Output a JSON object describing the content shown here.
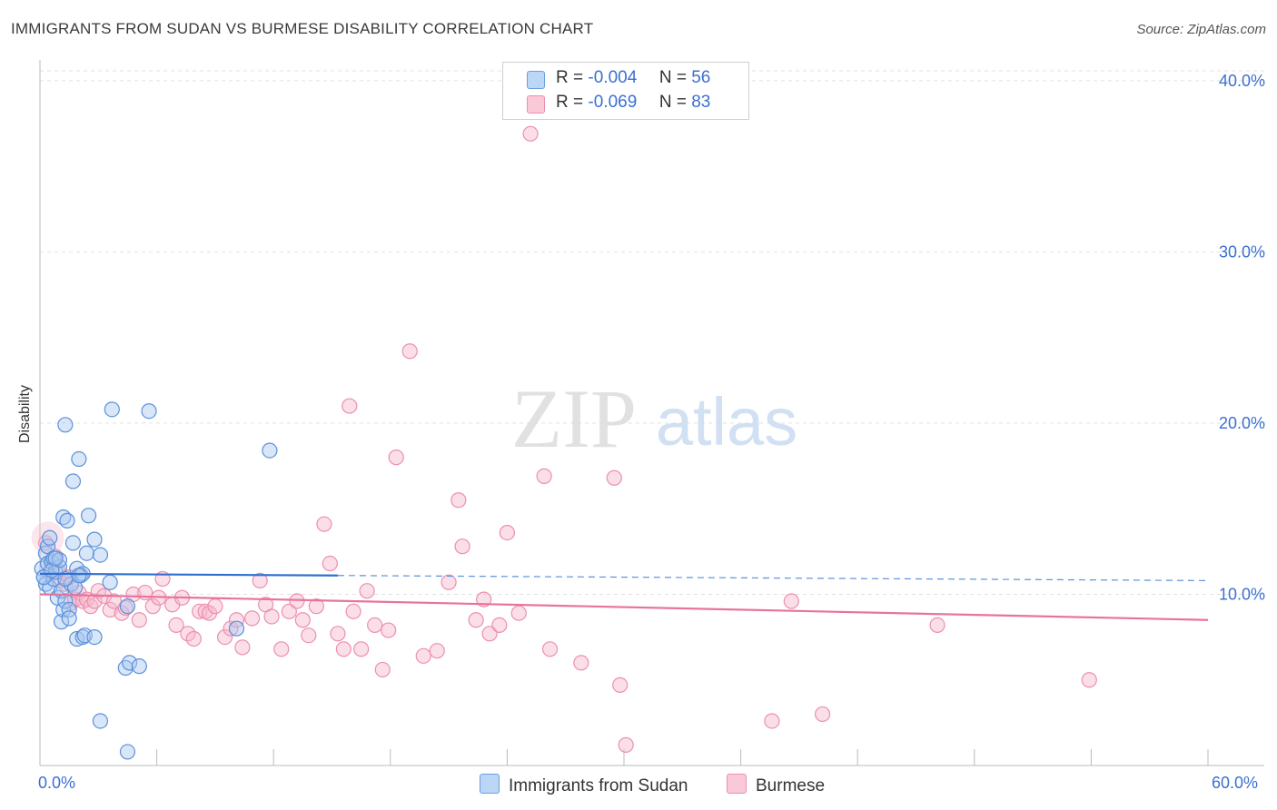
{
  "header": {
    "title": "IMMIGRANTS FROM SUDAN VS BURMESE DISABILITY CORRELATION CHART",
    "source": "Source: ZipAtlas.com"
  },
  "watermark": {
    "zip": "ZIP",
    "atlas": "atlas"
  },
  "legend": {
    "r_label": "R =",
    "n_label": "N =",
    "series": [
      {
        "r": "-0.004",
        "n": "56",
        "color": "#a8c8f0",
        "stroke": "#6a9ee0"
      },
      {
        "r": "-0.069",
        "n": "83",
        "color": "#f7b8cc",
        "stroke": "#ec8fae"
      }
    ]
  },
  "bottom_legend": [
    "Immigrants from Sudan",
    "Burmese"
  ],
  "chart_data": {
    "type": "scatter",
    "title": "IMMIGRANTS FROM SUDAN VS BURMESE DISABILITY CORRELATION CHART",
    "xlabel": "",
    "ylabel": "Disability",
    "xlim": [
      0,
      60
    ],
    "ylim": [
      0,
      41
    ],
    "x_tick_labels": [
      "0.0%",
      "60.0%"
    ],
    "y_ticks": [
      10,
      20,
      30,
      40
    ],
    "y_tick_labels": [
      "10.0%",
      "20.0%",
      "30.0%",
      "40.0%"
    ],
    "grid": true,
    "legend_position": "top-center",
    "series": [
      {
        "name": "Immigrants from Sudan",
        "color": "#6a9ee0",
        "trend": {
          "x": [
            0,
            15.3,
            60
          ],
          "y": [
            11.2,
            11.1,
            10.8
          ],
          "solid_until": 15.3
        },
        "points": [
          [
            0.1,
            11.5
          ],
          [
            0.2,
            11.0
          ],
          [
            0.3,
            10.6
          ],
          [
            0.3,
            12.4
          ],
          [
            0.4,
            12.8
          ],
          [
            0.4,
            11.8
          ],
          [
            0.5,
            10.4
          ],
          [
            0.5,
            13.3
          ],
          [
            0.6,
            11.9
          ],
          [
            0.7,
            10.9
          ],
          [
            0.7,
            12.1
          ],
          [
            0.8,
            11.3
          ],
          [
            0.9,
            9.8
          ],
          [
            1.0,
            11.6
          ],
          [
            1.0,
            12.0
          ],
          [
            1.1,
            10.2
          ],
          [
            1.1,
            8.4
          ],
          [
            1.2,
            14.5
          ],
          [
            1.2,
            9.1
          ],
          [
            1.3,
            19.9
          ],
          [
            1.3,
            9.6
          ],
          [
            1.4,
            14.3
          ],
          [
            1.5,
            9.1
          ],
          [
            1.5,
            8.6
          ],
          [
            1.6,
            10.6
          ],
          [
            1.7,
            16.6
          ],
          [
            1.7,
            13.0
          ],
          [
            1.8,
            10.4
          ],
          [
            1.9,
            11.5
          ],
          [
            1.9,
            7.4
          ],
          [
            2.0,
            17.9
          ],
          [
            2.1,
            11.1
          ],
          [
            2.2,
            11.2
          ],
          [
            2.2,
            7.5
          ],
          [
            2.3,
            7.6
          ],
          [
            2.4,
            12.4
          ],
          [
            2.5,
            14.6
          ],
          [
            2.8,
            13.2
          ],
          [
            2.8,
            7.5
          ],
          [
            3.1,
            12.3
          ],
          [
            3.1,
            2.6
          ],
          [
            3.6,
            10.7
          ],
          [
            3.7,
            20.8
          ],
          [
            4.4,
            5.7
          ],
          [
            4.5,
            9.3
          ],
          [
            4.6,
            6.0
          ],
          [
            5.1,
            5.8
          ],
          [
            4.5,
            0.8
          ],
          [
            5.6,
            20.7
          ],
          [
            10.1,
            8.0
          ],
          [
            11.8,
            18.4
          ],
          [
            0.2,
            11.0
          ],
          [
            0.6,
            11.4
          ],
          [
            0.8,
            12.1
          ],
          [
            1.3,
            10.9
          ],
          [
            2.0,
            11.1
          ]
        ]
      },
      {
        "name": "Burmese",
        "color": "#ec8fae",
        "trend": {
          "x": [
            0,
            60
          ],
          "y": [
            10.0,
            8.5
          ],
          "solid_until": 60
        },
        "points": [
          [
            0.3,
            13.0
          ],
          [
            0.5,
            11.2
          ],
          [
            0.6,
            11.9
          ],
          [
            0.8,
            12.2
          ],
          [
            0.9,
            11.4
          ],
          [
            1.0,
            10.8
          ],
          [
            1.3,
            10.6
          ],
          [
            1.5,
            11.0
          ],
          [
            1.6,
            9.5
          ],
          [
            1.8,
            9.7
          ],
          [
            2.0,
            10.1
          ],
          [
            2.2,
            9.6
          ],
          [
            2.4,
            9.7
          ],
          [
            2.6,
            9.3
          ],
          [
            2.8,
            9.6
          ],
          [
            3.0,
            10.2
          ],
          [
            3.3,
            9.9
          ],
          [
            3.6,
            9.1
          ],
          [
            3.8,
            9.6
          ],
          [
            4.2,
            8.9
          ],
          [
            4.4,
            9.2
          ],
          [
            4.8,
            10.0
          ],
          [
            5.1,
            8.5
          ],
          [
            5.4,
            10.1
          ],
          [
            5.8,
            9.3
          ],
          [
            6.1,
            9.8
          ],
          [
            6.3,
            10.9
          ],
          [
            6.8,
            9.4
          ],
          [
            7.0,
            8.2
          ],
          [
            7.3,
            9.8
          ],
          [
            7.6,
            7.7
          ],
          [
            7.9,
            7.4
          ],
          [
            8.2,
            9.0
          ],
          [
            8.5,
            9.0
          ],
          [
            8.7,
            8.9
          ],
          [
            9.0,
            9.3
          ],
          [
            9.5,
            7.5
          ],
          [
            9.8,
            8.0
          ],
          [
            10.1,
            8.5
          ],
          [
            10.4,
            6.9
          ],
          [
            10.9,
            8.6
          ],
          [
            11.3,
            10.8
          ],
          [
            11.6,
            9.4
          ],
          [
            11.9,
            8.7
          ],
          [
            12.4,
            6.8
          ],
          [
            12.8,
            9.0
          ],
          [
            13.2,
            9.6
          ],
          [
            13.5,
            8.5
          ],
          [
            13.8,
            7.6
          ],
          [
            14.2,
            9.3
          ],
          [
            14.6,
            14.1
          ],
          [
            14.9,
            11.8
          ],
          [
            15.3,
            7.7
          ],
          [
            15.6,
            6.8
          ],
          [
            15.9,
            21.0
          ],
          [
            16.1,
            9.0
          ],
          [
            16.5,
            6.8
          ],
          [
            16.8,
            10.2
          ],
          [
            17.2,
            8.2
          ],
          [
            17.6,
            5.6
          ],
          [
            17.9,
            7.9
          ],
          [
            18.3,
            18.0
          ],
          [
            19.0,
            24.2
          ],
          [
            19.7,
            6.4
          ],
          [
            20.4,
            6.7
          ],
          [
            21.0,
            10.7
          ],
          [
            21.5,
            15.5
          ],
          [
            21.7,
            12.8
          ],
          [
            22.4,
            8.5
          ],
          [
            22.8,
            9.7
          ],
          [
            23.1,
            7.7
          ],
          [
            23.6,
            8.2
          ],
          [
            24.0,
            13.6
          ],
          [
            24.6,
            8.9
          ],
          [
            25.2,
            36.9
          ],
          [
            25.9,
            16.9
          ],
          [
            26.2,
            6.8
          ],
          [
            27.8,
            6.0
          ],
          [
            29.5,
            16.8
          ],
          [
            29.8,
            4.7
          ],
          [
            30.1,
            1.2
          ],
          [
            37.6,
            2.6
          ],
          [
            38.6,
            9.6
          ]
        ],
        "extra_points": [
          [
            40.2,
            3.0
          ],
          [
            46.1,
            8.2
          ],
          [
            53.9,
            5.0
          ]
        ]
      }
    ]
  }
}
